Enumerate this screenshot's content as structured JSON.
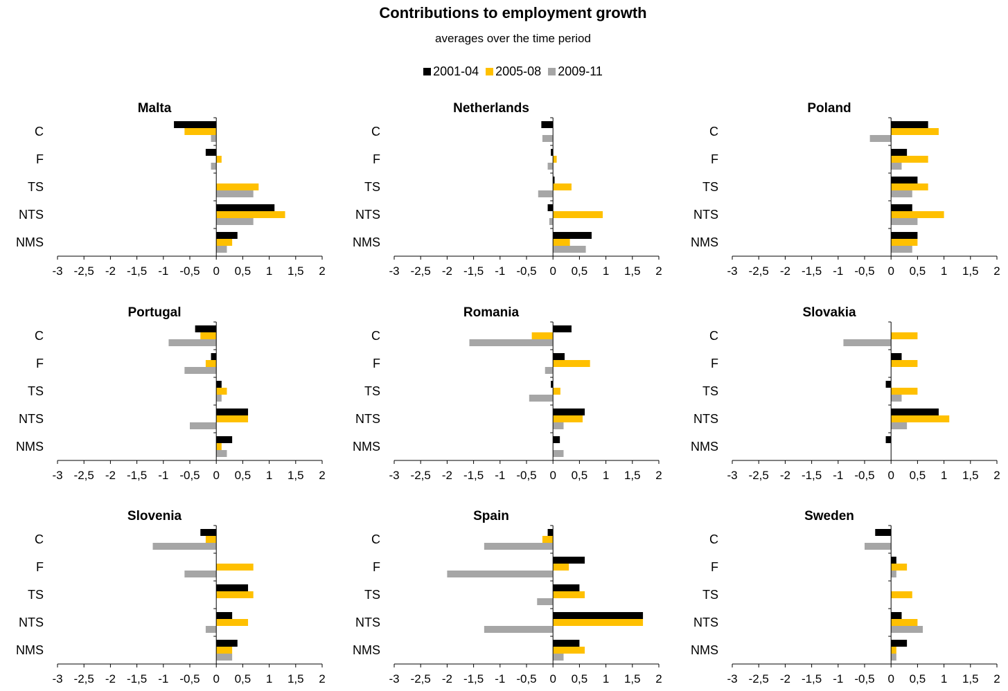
{
  "title": "Contributions to employment growth",
  "subtitle": "averages over the time period",
  "colors": {
    "2001-04": "#000000",
    "2005-08": "#FFC000",
    "2009-11": "#A6A6A6"
  },
  "chart_data": [
    {
      "type": "bar",
      "orientation": "horizontal",
      "title": "Malta",
      "categories": [
        "C",
        "F",
        "TS",
        "NTS",
        "NMS"
      ],
      "series": [
        {
          "name": "2001-04",
          "values": [
            -0.8,
            -0.2,
            0.0,
            1.1,
            0.4
          ]
        },
        {
          "name": "2005-08",
          "values": [
            -0.6,
            0.1,
            0.8,
            1.3,
            0.3
          ]
        },
        {
          "name": "2009-11",
          "values": [
            -0.1,
            -0.1,
            0.7,
            0.7,
            0.2
          ]
        }
      ],
      "xlim": [
        -3,
        2
      ],
      "xticks": [
        "-3",
        "-2,5",
        "-2",
        "-1,5",
        "-1",
        "-0,5",
        "0",
        "0,5",
        "1",
        "1,5",
        "2"
      ]
    },
    {
      "type": "bar",
      "orientation": "horizontal",
      "title": "Netherlands",
      "categories": [
        "C",
        "F",
        "TS",
        "NTS",
        "NMS"
      ],
      "series": [
        {
          "name": "2001-04",
          "values": [
            -0.22,
            -0.04,
            0.03,
            -0.1,
            0.73
          ]
        },
        {
          "name": "2005-08",
          "values": [
            0.0,
            0.07,
            0.35,
            0.94,
            0.32
          ]
        },
        {
          "name": "2009-11",
          "values": [
            -0.2,
            -0.1,
            -0.28,
            -0.07,
            0.62
          ]
        }
      ],
      "xlim": [
        -3,
        2
      ],
      "xticks": [
        "-3",
        "-2,5",
        "-2",
        "-1,5",
        "-1",
        "-0,5",
        "0",
        "0,5",
        "1",
        "1,5",
        "2"
      ]
    },
    {
      "type": "bar",
      "orientation": "horizontal",
      "title": "Poland",
      "categories": [
        "C",
        "F",
        "TS",
        "NTS",
        "NMS"
      ],
      "series": [
        {
          "name": "2001-04",
          "values": [
            0.7,
            0.3,
            0.5,
            0.4,
            0.5
          ]
        },
        {
          "name": "2005-08",
          "values": [
            0.9,
            0.7,
            0.7,
            1.0,
            0.5
          ]
        },
        {
          "name": "2009-11",
          "values": [
            -0.4,
            0.2,
            0.4,
            0.5,
            0.4
          ]
        }
      ],
      "xlim": [
        -3,
        2
      ],
      "xticks": [
        "-3",
        "-2,5",
        "-2",
        "-1,5",
        "-1",
        "-0,5",
        "0",
        "0,5",
        "1",
        "1,5",
        "2"
      ]
    },
    {
      "type": "bar",
      "orientation": "horizontal",
      "title": "Portugal",
      "categories": [
        "C",
        "F",
        "TS",
        "NTS",
        "NMS"
      ],
      "series": [
        {
          "name": "2001-04",
          "values": [
            -0.4,
            -0.1,
            0.1,
            0.6,
            0.3
          ]
        },
        {
          "name": "2005-08",
          "values": [
            -0.3,
            -0.2,
            0.2,
            0.6,
            0.1
          ]
        },
        {
          "name": "2009-11",
          "values": [
            -0.9,
            -0.6,
            0.1,
            -0.5,
            0.2
          ]
        }
      ],
      "xlim": [
        -3,
        2
      ],
      "xticks": [
        "-3",
        "-2,5",
        "-2",
        "-1,5",
        "-1",
        "-0,5",
        "0",
        "0,5",
        "1",
        "1,5",
        "2"
      ]
    },
    {
      "type": "bar",
      "orientation": "horizontal",
      "title": "Romania",
      "categories": [
        "C",
        "F",
        "TS",
        "NTS",
        "NMS"
      ],
      "series": [
        {
          "name": "2001-04",
          "values": [
            0.35,
            0.22,
            -0.04,
            0.6,
            0.13
          ]
        },
        {
          "name": "2005-08",
          "values": [
            -0.4,
            0.7,
            0.14,
            0.56,
            0.0
          ]
        },
        {
          "name": "2009-11",
          "values": [
            -1.58,
            -0.15,
            -0.45,
            0.2,
            0.2
          ]
        }
      ],
      "xlim": [
        -3,
        2
      ],
      "xticks": [
        "-3",
        "-2,5",
        "-2",
        "-1,5",
        "-1",
        "-0,5",
        "0",
        "0,5",
        "1",
        "1,5",
        "2"
      ]
    },
    {
      "type": "bar",
      "orientation": "horizontal",
      "title": "Slovakia",
      "categories": [
        "C",
        "F",
        "TS",
        "NTS",
        "NMS"
      ],
      "series": [
        {
          "name": "2001-04",
          "values": [
            0.0,
            0.2,
            -0.1,
            0.9,
            -0.1
          ]
        },
        {
          "name": "2005-08",
          "values": [
            0.5,
            0.5,
            0.5,
            1.1,
            0.0
          ]
        },
        {
          "name": "2009-11",
          "values": [
            -0.9,
            0.0,
            0.2,
            0.3,
            0.0
          ]
        }
      ],
      "xlim": [
        -3,
        2
      ],
      "xticks": [
        "-3",
        "-2,5",
        "-2",
        "-1,5",
        "-1",
        "-0,5",
        "0",
        "0,5",
        "1",
        "1,5",
        "2"
      ]
    },
    {
      "type": "bar",
      "orientation": "horizontal",
      "title": "Slovenia",
      "categories": [
        "C",
        "F",
        "TS",
        "NTS",
        "NMS"
      ],
      "series": [
        {
          "name": "2001-04",
          "values": [
            -0.3,
            0.0,
            0.6,
            0.3,
            0.4
          ]
        },
        {
          "name": "2005-08",
          "values": [
            -0.2,
            0.7,
            0.7,
            0.6,
            0.3
          ]
        },
        {
          "name": "2009-11",
          "values": [
            -1.2,
            -0.6,
            0.0,
            -0.2,
            0.3
          ]
        }
      ],
      "xlim": [
        -3,
        2
      ],
      "xticks": [
        "-3",
        "-2,5",
        "-2",
        "-1,5",
        "-1",
        "-0,5",
        "0",
        "0,5",
        "1",
        "1,5",
        "2"
      ]
    },
    {
      "type": "bar",
      "orientation": "horizontal",
      "title": "Spain",
      "categories": [
        "C",
        "F",
        "TS",
        "NTS",
        "NMS"
      ],
      "series": [
        {
          "name": "2001-04",
          "values": [
            -0.1,
            0.6,
            0.5,
            1.7,
            0.5
          ]
        },
        {
          "name": "2005-08",
          "values": [
            -0.2,
            0.3,
            0.6,
            1.7,
            0.6
          ]
        },
        {
          "name": "2009-11",
          "values": [
            -1.3,
            -2.0,
            -0.3,
            -1.3,
            0.2
          ]
        }
      ],
      "xlim": [
        -3,
        2
      ],
      "xticks": [
        "-3",
        "-2,5",
        "-2",
        "-1,5",
        "-1",
        "-0,5",
        "0",
        "0,5",
        "1",
        "1,5",
        "2"
      ]
    },
    {
      "type": "bar",
      "orientation": "horizontal",
      "title": "Sweden",
      "categories": [
        "C",
        "F",
        "TS",
        "NTS",
        "NMS"
      ],
      "series": [
        {
          "name": "2001-04",
          "values": [
            -0.3,
            0.1,
            0.0,
            0.2,
            0.3
          ]
        },
        {
          "name": "2005-08",
          "values": [
            0.0,
            0.3,
            0.4,
            0.5,
            0.1
          ]
        },
        {
          "name": "2009-11",
          "values": [
            -0.5,
            0.1,
            0.0,
            0.6,
            0.1
          ]
        }
      ],
      "xlim": [
        -3,
        2
      ],
      "xticks": [
        "-3",
        "-2,5",
        "-2",
        "-1,5",
        "-1",
        "-0,5",
        "0",
        "0,5",
        "1",
        "1,5",
        "2"
      ]
    }
  ]
}
